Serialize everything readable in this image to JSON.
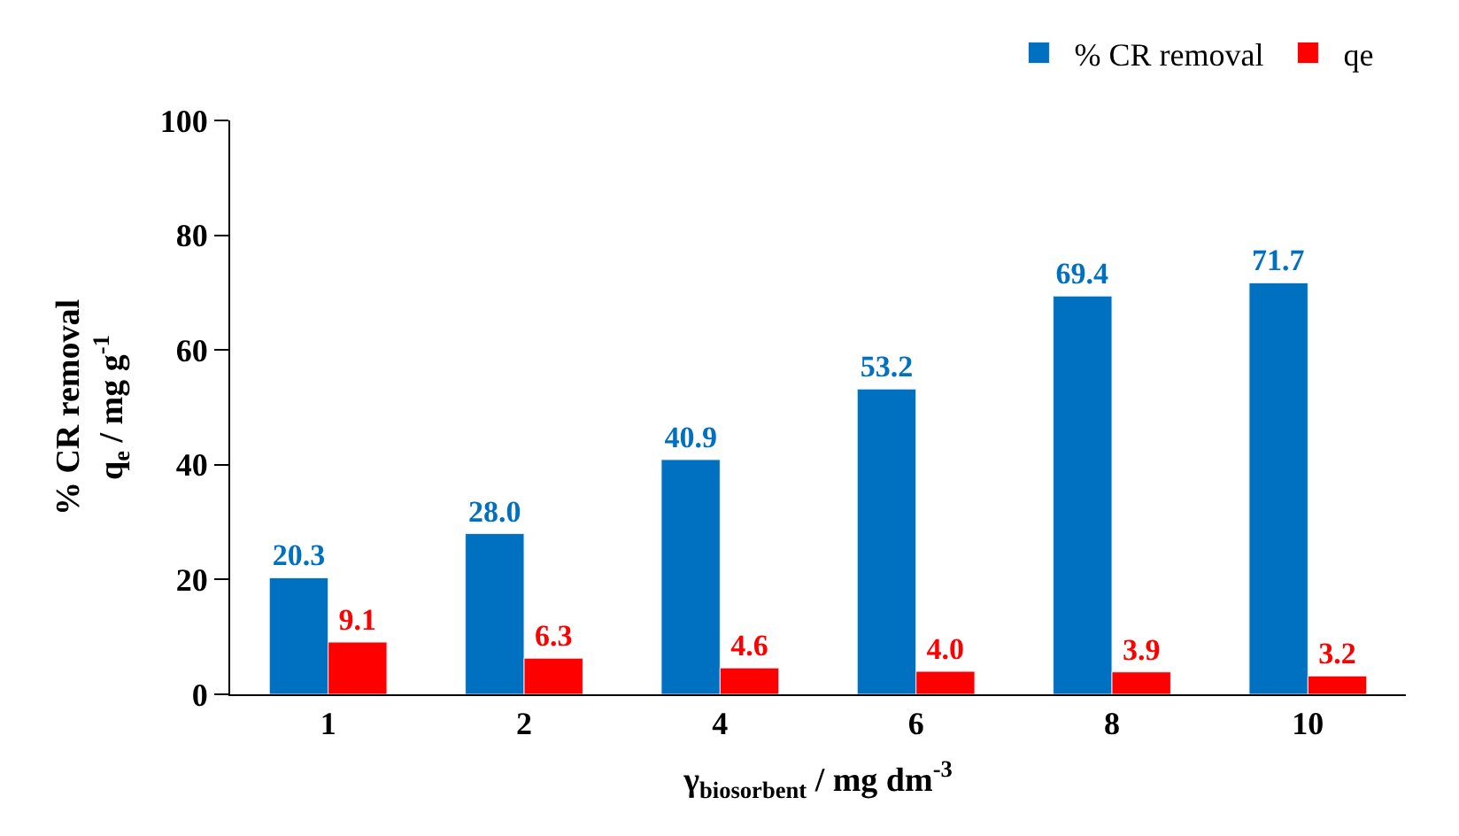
{
  "chart_data": {
    "type": "bar",
    "xlabel": "γ$_{biosorbent}$ / mg dm$^{-3}$",
    "ylabel": "% CR removal\nq$_{e}$ / mg g$^{-1}$",
    "categories": [
      "1",
      "2",
      "4",
      "6",
      "8",
      "10"
    ],
    "series": [
      {
        "name": "% CR removal",
        "color": "#0070c0",
        "values": [
          20.3,
          28.0,
          40.9,
          53.2,
          69.4,
          71.7
        ],
        "value_labels": [
          "20.3",
          "28.0",
          "40.9",
          "53.2",
          "69.4",
          "71.7"
        ]
      },
      {
        "name": "qe",
        "color": "#ff0000",
        "values": [
          9.1,
          6.3,
          4.6,
          4.0,
          3.9,
          3.2
        ],
        "value_labels": [
          "9.1",
          "6.3",
          "4.6",
          "4.0",
          "3.9",
          "3.2"
        ]
      }
    ],
    "ylim": [
      0,
      100
    ],
    "yticks": [
      0,
      20,
      40,
      60,
      80,
      100
    ],
    "legend": "top right"
  }
}
